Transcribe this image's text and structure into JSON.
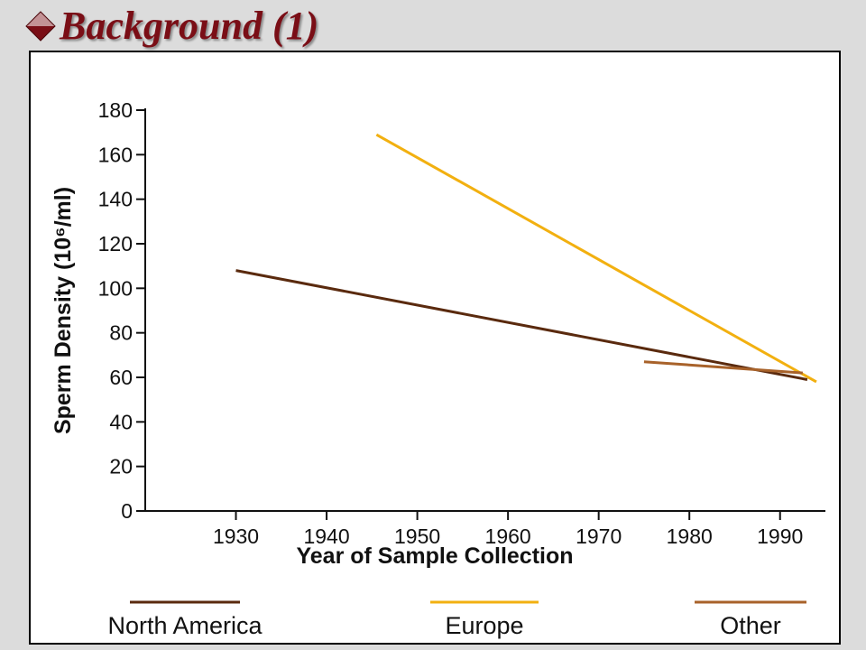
{
  "slide": {
    "title": "Background (1)",
    "bullet_icon": "diamond-bullet-icon"
  },
  "colors": {
    "title": "#7a0e16",
    "north_america": "#5a2a0e",
    "europe": "#f2b010",
    "other": "#a8622a"
  },
  "chart_data": {
    "type": "line",
    "title": "",
    "xlabel": "Year of Sample Collection",
    "ylabel": "Sperm Density (10⁶/ml)",
    "xlim": [
      1920,
      1995
    ],
    "ylim": [
      0,
      180
    ],
    "x_ticks": [
      1930,
      1940,
      1950,
      1960,
      1970,
      1980,
      1990
    ],
    "y_ticks": [
      0,
      20,
      40,
      60,
      80,
      100,
      120,
      140,
      160,
      180
    ],
    "grid": false,
    "legend_position": "bottom",
    "series": [
      {
        "name": "North America",
        "color": "#5a2a0e",
        "points": [
          [
            1930,
            108
          ],
          [
            1993,
            59
          ]
        ]
      },
      {
        "name": "Europe",
        "color": "#f2b010",
        "points": [
          [
            1945.5,
            169
          ],
          [
            1994,
            58
          ]
        ]
      },
      {
        "name": "Other",
        "color": "#a8622a",
        "points": [
          [
            1975,
            67
          ],
          [
            1992.5,
            62
          ]
        ]
      }
    ]
  }
}
